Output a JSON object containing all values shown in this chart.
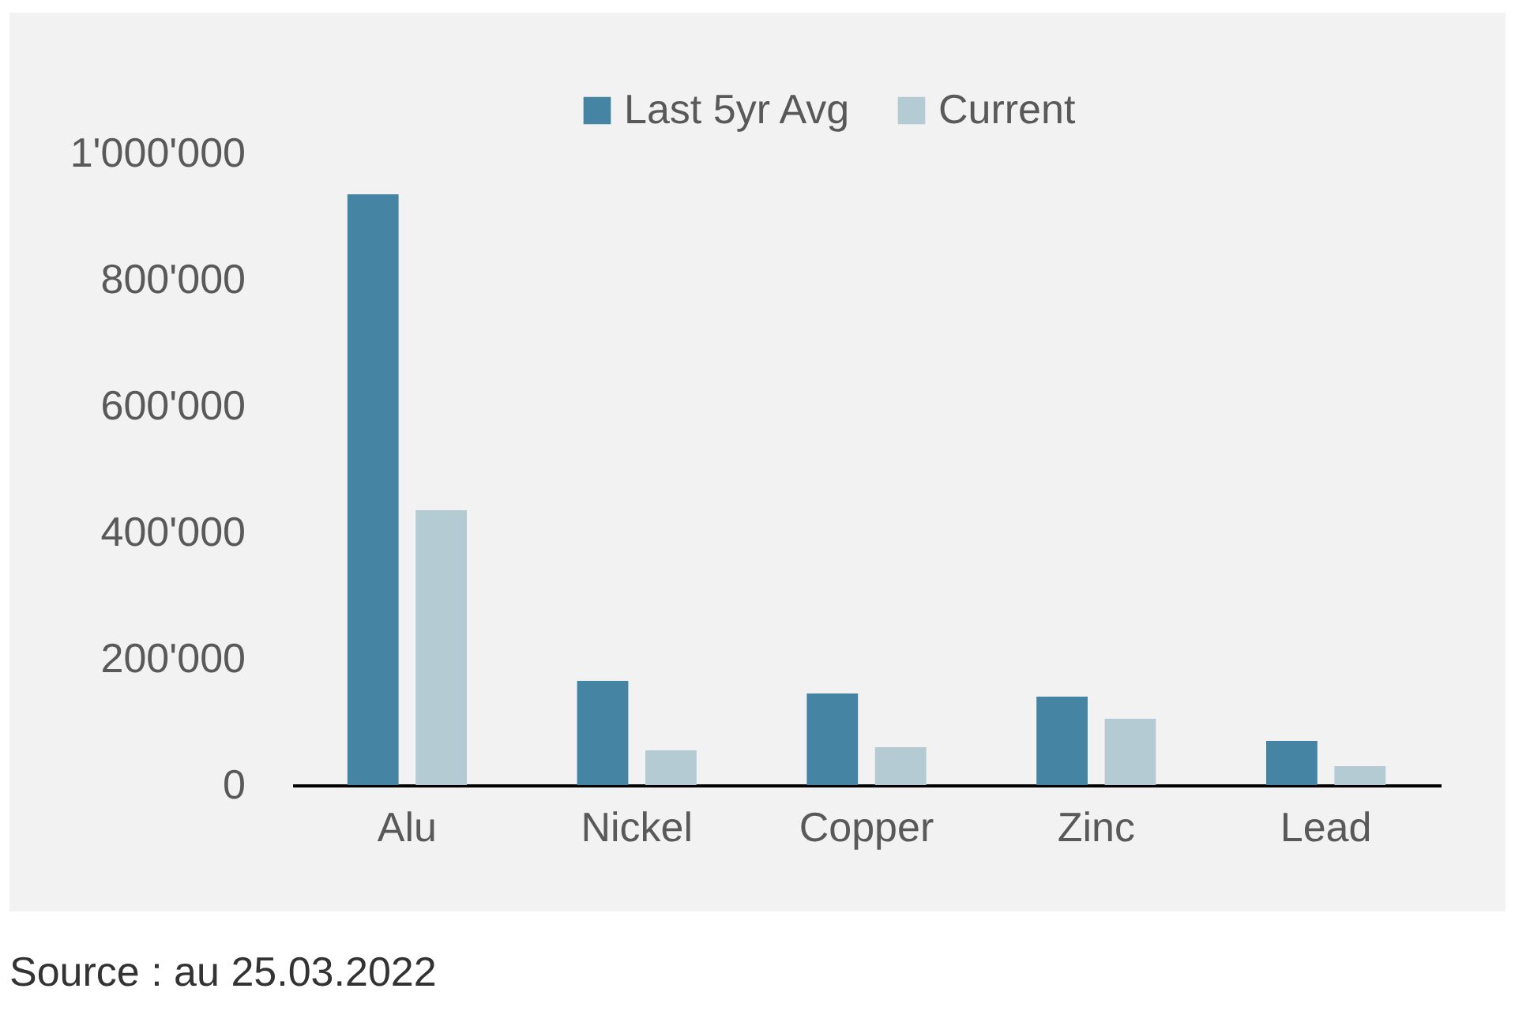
{
  "chart_data": {
    "type": "bar",
    "categories": [
      "Alu",
      "Nickel",
      "Copper",
      "Zinc",
      "Lead"
    ],
    "series": [
      {
        "name": "Last 5yr Avg",
        "color": "#4584a3",
        "values": [
          935000,
          165000,
          145000,
          140000,
          70000
        ]
      },
      {
        "name": "Current",
        "color": "#b5cbd3",
        "values": [
          435000,
          55000,
          60000,
          105000,
          30000
        ]
      }
    ],
    "ylim": [
      0,
      1000000
    ],
    "yticks": [
      0,
      {
        "value": 200000,
        "label": "200'000"
      },
      {
        "value": 400000,
        "label": "400'000"
      },
      {
        "value": 600000,
        "label": "600'000"
      },
      {
        "value": 800000,
        "label": "800'000"
      },
      {
        "value": 1000000,
        "label": "1'000'000"
      }
    ],
    "grid": false,
    "legend": "top",
    "annotations": [
      "Source : au 25.03.2022"
    ]
  }
}
